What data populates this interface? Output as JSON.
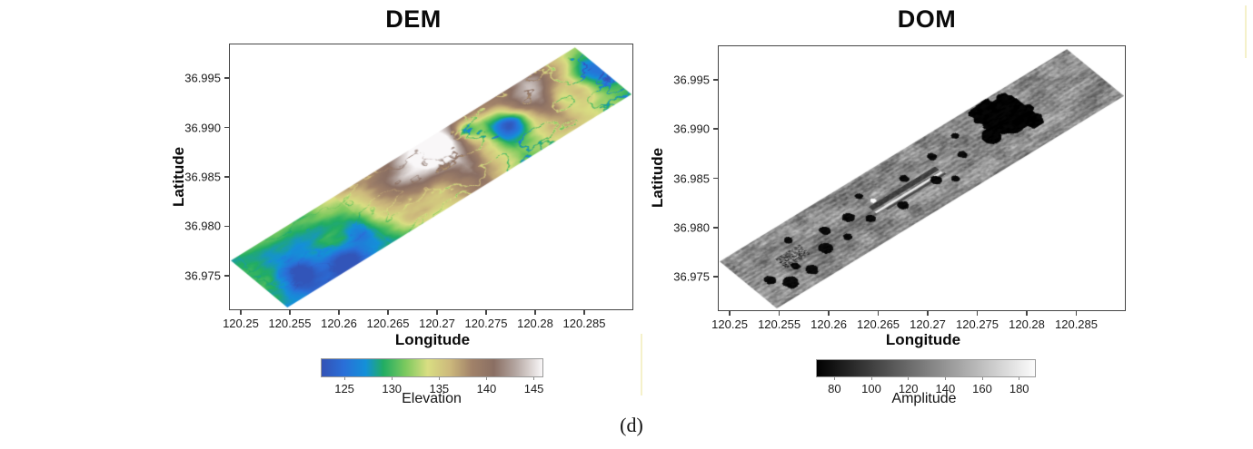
{
  "figure": {
    "caption": "(d)",
    "background_color": "#ffffff",
    "axis_color": "#454545",
    "text_color": "#111111"
  },
  "chart_data": [
    {
      "type": "heatmap",
      "panel": "left",
      "title": "DEM",
      "xlabel": "Longitude",
      "ylabel": "Latitude",
      "xlim": [
        120.2488,
        120.29
      ],
      "ylim": [
        36.9715,
        36.9985
      ],
      "xtick_labels": [
        "120.25",
        "120.255",
        "120.26",
        "120.265",
        "120.27",
        "120.275",
        "120.28",
        "120.285"
      ],
      "ytick_labels": [
        "36.995",
        "36.990",
        "36.985",
        "36.980",
        "36.975"
      ],
      "grid": false,
      "legend": "none",
      "colorbar": {
        "label": "Elevation",
        "orientation": "horizontal",
        "position": "below",
        "range": [
          122.5,
          146
        ],
        "tick_labels": [
          "125",
          "130",
          "135",
          "140",
          "145"
        ]
      },
      "colormap": [
        [
          0.0,
          "#3352b5"
        ],
        [
          0.1,
          "#2a6fd8"
        ],
        [
          0.2,
          "#1490d8"
        ],
        [
          0.28,
          "#22ad62"
        ],
        [
          0.38,
          "#7cc95e"
        ],
        [
          0.48,
          "#d9de82"
        ],
        [
          0.58,
          "#cdb97c"
        ],
        [
          0.68,
          "#a18269"
        ],
        [
          0.78,
          "#8a6f63"
        ],
        [
          0.88,
          "#b5a7a2"
        ],
        [
          1.0,
          "#f9f7f8"
        ]
      ],
      "swath_corners_lonlat": {
        "west": [
          120.2489,
          36.9764
        ],
        "south": [
          120.2547,
          36.9716
        ],
        "east": [
          120.2897,
          36.9934
        ],
        "north": [
          120.2842,
          36.9982
        ]
      },
      "content_summary": "Rotated DEM swath: low blue-green terrain (~125-131 m) in the southwest, tan and brown ridges (~135-142 m) with a white peak (~146 m) near the centre, green drainage channels and blue lowland pockets (~125 m) in the northeast."
    },
    {
      "type": "heatmap",
      "panel": "right",
      "title": "DOM",
      "xlabel": "Longitude",
      "ylabel": "Latitude",
      "xlim": [
        120.2488,
        120.29
      ],
      "ylim": [
        36.9715,
        36.9985
      ],
      "xtick_labels": [
        "120.25",
        "120.255",
        "120.26",
        "120.265",
        "120.27",
        "120.275",
        "120.28",
        "120.285"
      ],
      "ytick_labels": [
        "36.995",
        "36.990",
        "36.985",
        "36.980",
        "36.975"
      ],
      "grid": false,
      "legend": "none",
      "colorbar": {
        "label": "Amplitude",
        "orientation": "horizontal",
        "position": "below",
        "range": [
          70,
          189
        ],
        "tick_labels": [
          "80",
          "100",
          "120",
          "140",
          "160",
          "180"
        ]
      },
      "colormap": [
        [
          0.0,
          "#000000"
        ],
        [
          1.0,
          "#fcfcfc"
        ]
      ],
      "swath_corners_lonlat": {
        "west": [
          120.2489,
          36.9764
        ],
        "south": [
          120.2547,
          36.9716
        ],
        "east": [
          120.2897,
          36.9934
        ],
        "north": [
          120.2842,
          36.9982
        ]
      },
      "content_summary": "Grayscale orthophoto swath: streaky farmland texture, scattered dark ponds, a runway strip with a bright line near the centre, a speckled village block in the southwest and a large black water body in the northeast."
    }
  ]
}
